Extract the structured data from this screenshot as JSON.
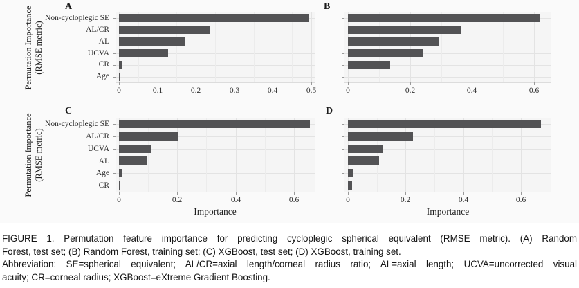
{
  "figure": {
    "ylabel_lines": [
      "Permutation Importance",
      "(RMSE metric)"
    ],
    "xlabel": "Importance"
  },
  "colors": {
    "bar": "#535355",
    "panel_bg": "#f5f5f5",
    "figure_bg": "#fafafa",
    "grid_major": "#e3e3e3",
    "grid_minor": "#ececec",
    "tick": "#9a9a9a",
    "text": "#2e2e2e"
  },
  "chart_data": [
    {
      "type": "bar",
      "panel": "A",
      "orientation": "horizontal",
      "categories": [
        "Non-cycloplegic SE",
        "AL/CR",
        "AL",
        "UCVA",
        "CR",
        "Age"
      ],
      "values": [
        0.495,
        0.235,
        0.17,
        0.127,
        0.008,
        0.002
      ],
      "xticks": [
        0,
        0.1,
        0.2,
        0.3,
        0.4,
        0.5
      ],
      "xtick_labels": [
        "0",
        "0.1",
        "0.2",
        "0.3",
        "0.4",
        "0.5"
      ],
      "minor_xticks": [
        0.05,
        0.15,
        0.25,
        0.35,
        0.45
      ],
      "xlim": [
        0,
        0.51
      ],
      "show_category_labels": true,
      "xlabel": ""
    },
    {
      "type": "bar",
      "panel": "B",
      "orientation": "horizontal",
      "categories": [
        "Non-cycloplegic SE",
        "AL/CR",
        "AL",
        "UCVA",
        "CR",
        "Age"
      ],
      "values": [
        0.62,
        0.365,
        0.295,
        0.24,
        0.135,
        0.001
      ],
      "xticks": [
        0,
        0.2,
        0.4,
        0.6
      ],
      "xtick_labels": [
        "0",
        "0.2",
        "0.4",
        "0.6"
      ],
      "minor_xticks": [
        0.1,
        0.3,
        0.5
      ],
      "xlim": [
        0,
        0.655
      ],
      "show_category_labels": false,
      "xlabel": ""
    },
    {
      "type": "bar",
      "panel": "C",
      "orientation": "horizontal",
      "categories": [
        "Non-cycloplegic SE",
        "AL/CR",
        "UCVA",
        "AL",
        "Age",
        "CR"
      ],
      "values": [
        0.655,
        0.205,
        0.11,
        0.095,
        0.012,
        0.005
      ],
      "xticks": [
        0,
        0.2,
        0.4,
        0.6
      ],
      "xtick_labels": [
        "0",
        "0.2",
        "0.4",
        "0.6"
      ],
      "minor_xticks": [
        0.1,
        0.3,
        0.5
      ],
      "xlim": [
        0,
        0.67
      ],
      "show_category_labels": true,
      "xlabel": "Importance"
    },
    {
      "type": "bar",
      "panel": "D",
      "orientation": "horizontal",
      "categories": [
        "Non-cycloplegic SE",
        "AL/CR",
        "UCVA",
        "AL",
        "Age",
        "CR"
      ],
      "values": [
        0.67,
        0.225,
        0.12,
        0.108,
        0.019,
        0.014
      ],
      "xticks": [
        0,
        0.2,
        0.4,
        0.6
      ],
      "xtick_labels": [
        "0",
        "0.2",
        "0.4",
        "0.6"
      ],
      "minor_xticks": [
        0.1,
        0.3,
        0.5
      ],
      "xlim": [
        0,
        0.705
      ],
      "show_category_labels": false,
      "xlabel": "Importance"
    }
  ],
  "caption": {
    "lines": [
      "FIGURE 1. Permutation feature importance for predicting cycloplegic spherical equivalent (RMSE metric). (A) Random",
      "Forest, test set; (B) Random Forest, training set; (C) XGBoost, test set; (D) XGBoost, training set.",
      "Abbreviation: SE=spherical equivalent; AL/CR=axial length/corneal radius ratio; AL=axial length; UCVA=uncorrected visual",
      "acuity; CR=corneal radius; XGBoost=eXtreme Gradient Boosting."
    ]
  }
}
